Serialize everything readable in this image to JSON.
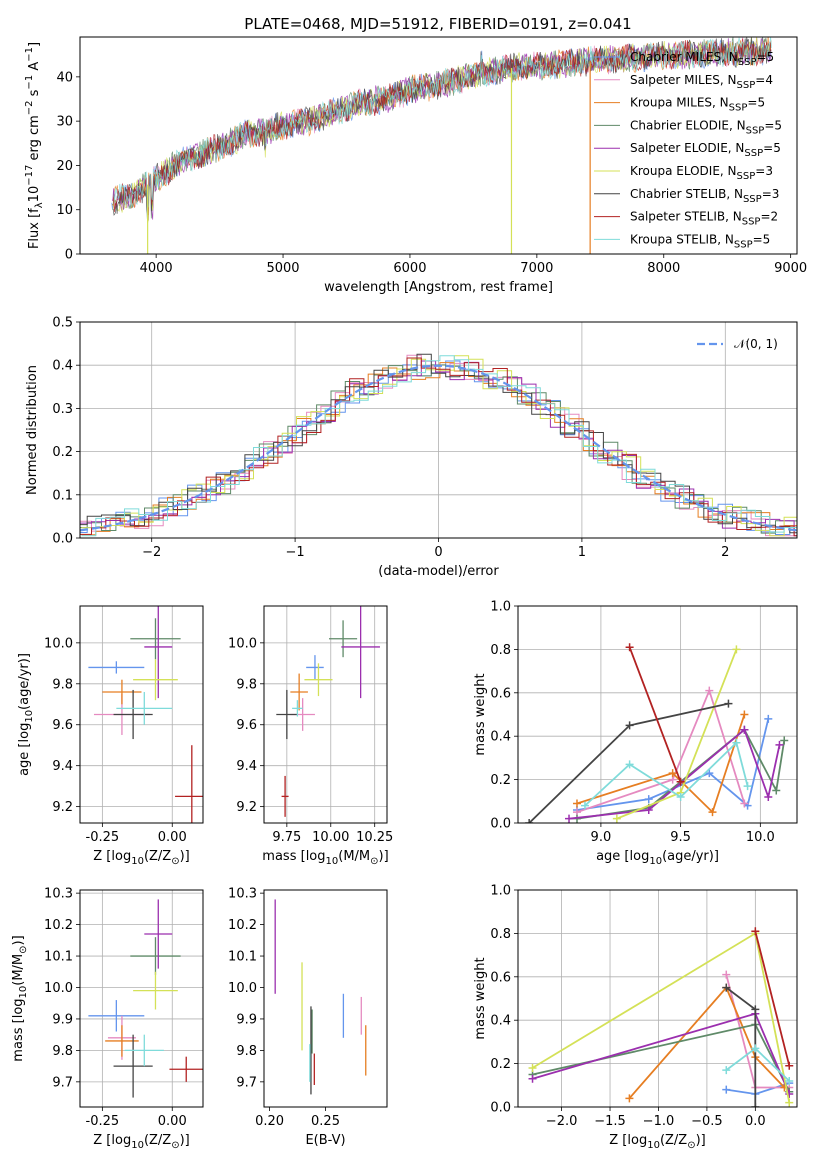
{
  "figure": {
    "title": "PLATE=0468, MJD=51912, FIBERID=0191, z=0.041"
  },
  "chart_data": [
    {
      "id": "spectrum",
      "type": "line",
      "xlabel": "wavelength [Angstrom, rest frame]",
      "ylabel": "Flux [f_λ10^-17 erg cm^-2 s^-1 A^-1]",
      "xlim": [
        3400,
        9050
      ],
      "ylim": [
        0,
        49
      ],
      "xticks": [
        4000,
        5000,
        6000,
        7000,
        8000,
        9000
      ],
      "yticks": [
        0,
        10,
        20,
        30,
        40
      ],
      "grid": false,
      "legend_position": "right",
      "continuum": {
        "x": [
          3650,
          3800,
          3900,
          4000,
          4100,
          4200,
          4300,
          4400,
          4500,
          4600,
          4700,
          4800,
          4900,
          5000,
          5200,
          5400,
          5600,
          5800,
          6000,
          6200,
          6400,
          6600,
          6800,
          7000,
          7200,
          7400,
          7600,
          7800,
          8000,
          8200,
          8400,
          8600,
          8800
        ],
        "y": [
          12,
          13,
          15,
          17,
          19,
          21,
          22,
          23,
          24,
          25.5,
          27,
          27.5,
          28,
          29,
          30,
          32,
          34,
          35,
          37,
          38,
          39.5,
          41,
          42,
          42.5,
          43,
          43.5,
          44,
          44.5,
          45,
          45,
          45.5,
          45.5,
          46
        ]
      },
      "dips": [
        {
          "x": 3933,
          "y": 0
        },
        {
          "x": 6800,
          "y": 0
        },
        {
          "x": 7420,
          "y": 0
        }
      ],
      "series": [
        {
          "name": "Chabrier MILES, N_SSP=5",
          "color": "#6495ed"
        },
        {
          "name": "Salpeter MILES, N_SSP=4",
          "color": "#e58ac0"
        },
        {
          "name": "Kroupa MILES, N_SSP=5",
          "color": "#e67e22"
        },
        {
          "name": "Chabrier ELODIE, N_SSP=5",
          "color": "#5f8a68"
        },
        {
          "name": "Salpeter ELODIE, N_SSP=5",
          "color": "#9b2fae"
        },
        {
          "name": "Kroupa ELODIE, N_SSP=3",
          "color": "#d4e157"
        },
        {
          "name": "Chabrier STELIB, N_SSP=3",
          "color": "#444444"
        },
        {
          "name": "Salpeter STELIB, N_SSP=2",
          "color": "#b22222"
        },
        {
          "name": "Kroupa STELIB, N_SSP=5",
          "color": "#7fdbda"
        }
      ]
    },
    {
      "id": "residuals",
      "type": "line",
      "xlabel": "(data-model)/error",
      "ylabel": "Normed distribution",
      "xlim": [
        -2.5,
        2.5
      ],
      "ylim": [
        0,
        0.5
      ],
      "xticks": [
        -2,
        -1,
        0,
        1,
        2
      ],
      "yticks": [
        0.0,
        0.1,
        0.2,
        0.3,
        0.4,
        0.5
      ],
      "grid": true,
      "legend_position": "top-right",
      "gaussian_label": "𝒩(0, 1)",
      "gaussian_color": "#6495ed",
      "bin_width": 0.1,
      "series_colors": [
        "#6495ed",
        "#e58ac0",
        "#e67e22",
        "#5f8a68",
        "#9b2fae",
        "#d4e157",
        "#444444",
        "#b22222",
        "#7fdbda"
      ]
    },
    {
      "id": "age-vs-Z",
      "type": "scatter",
      "xlabel": "Z [log10(Z/Z⊙)]",
      "ylabel": "age  [log10(age/yr)]",
      "xlim": [
        -0.33,
        0.11
      ],
      "ylim": [
        9.12,
        10.18
      ],
      "xticks": [
        -0.25,
        0.0
      ],
      "xticklabels": [
        "-0.25",
        "0.00"
      ],
      "yticks": [
        9.2,
        9.4,
        9.6,
        9.8,
        10.0
      ],
      "grid": true,
      "points": [
        {
          "x": -0.2,
          "y": 9.88,
          "xerr": 0.1,
          "yerr": 0.03,
          "color": "#6495ed"
        },
        {
          "x": -0.18,
          "y": 9.65,
          "xerr": 0.1,
          "yerr": 0.1,
          "color": "#e58ac0"
        },
        {
          "x": -0.18,
          "y": 9.76,
          "xerr": 0.07,
          "yerr": 0.06,
          "color": "#e67e22"
        },
        {
          "x": -0.06,
          "y": 10.02,
          "xerr": 0.09,
          "yerr": 0.1,
          "color": "#5f8a68"
        },
        {
          "x": -0.05,
          "y": 9.98,
          "xerr": 0.05,
          "yerr": 0.25,
          "color": "#9b2fae"
        },
        {
          "x": -0.06,
          "y": 9.82,
          "xerr": 0.08,
          "yerr": 0.1,
          "color": "#d4e157"
        },
        {
          "x": -0.14,
          "y": 9.65,
          "xerr": 0.07,
          "yerr": 0.12,
          "color": "#444444"
        },
        {
          "x": 0.07,
          "y": 9.25,
          "xerr": 0.06,
          "yerr": 0.25,
          "color": "#b22222"
        },
        {
          "x": -0.1,
          "y": 9.68,
          "xerr": 0.1,
          "yerr": 0.08,
          "color": "#7fdbda"
        }
      ]
    },
    {
      "id": "age-vs-mass",
      "type": "scatter",
      "xlabel": "mass [log10(M/M⊙)]",
      "ylabel": "",
      "xlim": [
        9.62,
        10.32
      ],
      "ylim": [
        9.12,
        10.18
      ],
      "xticks": [
        9.75,
        10.0,
        10.25
      ],
      "xticklabels": [
        "9.75",
        "10.00",
        "10.25"
      ],
      "yticks": [
        9.2,
        9.4,
        9.6,
        9.8,
        10.0
      ],
      "grid": true,
      "points": [
        {
          "x": 9.91,
          "y": 9.88,
          "xerr": 0.05,
          "yerr": 0.06,
          "color": "#6495ed"
        },
        {
          "x": 9.84,
          "y": 9.65,
          "xerr": 0.07,
          "yerr": 0.08,
          "color": "#e58ac0"
        },
        {
          "x": 9.82,
          "y": 9.76,
          "xerr": 0.05,
          "yerr": 0.09,
          "color": "#e67e22"
        },
        {
          "x": 10.07,
          "y": 10.02,
          "xerr": 0.08,
          "yerr": 0.09,
          "color": "#5f8a68"
        },
        {
          "x": 10.17,
          "y": 9.98,
          "xerr": 0.11,
          "yerr": 0.25,
          "color": "#9b2fae"
        },
        {
          "x": 9.93,
          "y": 9.82,
          "xerr": 0.08,
          "yerr": 0.08,
          "color": "#d4e157"
        },
        {
          "x": 9.75,
          "y": 9.65,
          "xerr": 0.06,
          "yerr": 0.12,
          "color": "#444444"
        },
        {
          "x": 9.74,
          "y": 9.25,
          "xerr": 0.02,
          "yerr": 0.1,
          "color": "#b22222"
        },
        {
          "x": 9.81,
          "y": 9.68,
          "xerr": 0.03,
          "yerr": 0.04,
          "color": "#7fdbda"
        }
      ]
    },
    {
      "id": "massweight-vs-age",
      "type": "line",
      "xlabel": "age  [log10(age/yr)]",
      "ylabel": "mass weight",
      "xlim": [
        8.48,
        10.23
      ],
      "ylim": [
        0,
        1.0
      ],
      "xticks": [
        9.0,
        9.5,
        10.0
      ],
      "xticklabels": [
        "9.0",
        "9.5",
        "10.0"
      ],
      "yticks": [
        0.0,
        0.2,
        0.4,
        0.6,
        0.8,
        1.0
      ],
      "grid": true,
      "series": [
        {
          "color": "#6495ed",
          "x": [
            8.85,
            9.3,
            9.68,
            9.92,
            10.05
          ],
          "y": [
            0.06,
            0.11,
            0.23,
            0.08,
            0.48
          ]
        },
        {
          "color": "#e58ac0",
          "x": [
            8.85,
            9.45,
            9.68,
            9.9
          ],
          "y": [
            0.05,
            0.2,
            0.61,
            0.09
          ]
        },
        {
          "color": "#e67e22",
          "x": [
            8.85,
            9.45,
            9.7,
            9.9
          ],
          "y": [
            0.09,
            0.23,
            0.05,
            0.5
          ]
        },
        {
          "color": "#5f8a68",
          "x": [
            8.85,
            9.3,
            9.9,
            10.1,
            10.15
          ],
          "y": [
            0.02,
            0.07,
            0.43,
            0.15,
            0.38
          ]
        },
        {
          "color": "#9b2fae",
          "x": [
            8.8,
            9.3,
            9.9,
            10.05,
            10.12
          ],
          "y": [
            0.02,
            0.06,
            0.43,
            0.12,
            0.36
          ]
        },
        {
          "color": "#d4e157",
          "x": [
            9.1,
            9.5,
            9.85
          ],
          "y": [
            0.02,
            0.14,
            0.8
          ]
        },
        {
          "color": "#444444",
          "x": [
            8.55,
            9.18,
            9.8
          ],
          "y": [
            0.0,
            0.45,
            0.55
          ]
        },
        {
          "color": "#b22222",
          "x": [
            9.18,
            9.5
          ],
          "y": [
            0.81,
            0.19
          ]
        },
        {
          "color": "#7fdbda",
          "x": [
            8.9,
            9.18,
            9.5,
            9.85,
            9.92
          ],
          "y": [
            0.08,
            0.27,
            0.12,
            0.37,
            0.17
          ]
        }
      ]
    },
    {
      "id": "mass-vs-Z",
      "type": "scatter",
      "xlabel": "Z [log10(Z/Z⊙)]",
      "ylabel": "mass [log10(M/M⊙)]",
      "xlim": [
        -0.33,
        0.11
      ],
      "ylim": [
        9.62,
        10.31
      ],
      "xticks": [
        -0.25,
        0.0
      ],
      "xticklabels": [
        "-0.25",
        "0.00"
      ],
      "yticks": [
        9.7,
        9.8,
        9.9,
        10.0,
        10.1,
        10.2,
        10.3
      ],
      "grid": true,
      "points": [
        {
          "x": -0.2,
          "y": 9.91,
          "xerr": 0.1,
          "yerr": 0.05,
          "color": "#6495ed"
        },
        {
          "x": -0.18,
          "y": 9.84,
          "xerr": 0.05,
          "yerr": 0.07,
          "color": "#e58ac0"
        },
        {
          "x": -0.18,
          "y": 9.83,
          "xerr": 0.06,
          "yerr": 0.05,
          "color": "#e67e22"
        },
        {
          "x": -0.06,
          "y": 10.1,
          "xerr": 0.09,
          "yerr": 0.06,
          "color": "#5f8a68"
        },
        {
          "x": -0.05,
          "y": 10.17,
          "xerr": 0.05,
          "yerr": 0.11,
          "color": "#9b2fae"
        },
        {
          "x": -0.06,
          "y": 9.99,
          "xerr": 0.08,
          "yerr": 0.06,
          "color": "#d4e157"
        },
        {
          "x": -0.14,
          "y": 9.75,
          "xerr": 0.07,
          "yerr": 0.1,
          "color": "#444444"
        },
        {
          "x": 0.05,
          "y": 9.74,
          "xerr": 0.06,
          "yerr": 0.04,
          "color": "#b22222"
        },
        {
          "x": -0.1,
          "y": 9.8,
          "xerr": 0.07,
          "yerr": 0.05,
          "color": "#7fdbda"
        }
      ]
    },
    {
      "id": "mass-vs-ebv",
      "type": "scatter",
      "xlabel": "E(B-V)",
      "ylabel": "",
      "xlim": [
        0.195,
        0.305
      ],
      "ylim": [
        9.62,
        10.31
      ],
      "xticks": [
        0.2,
        0.25
      ],
      "xticklabels": [
        "0.20",
        "0.25"
      ],
      "yticks": [
        9.7,
        9.8,
        9.9,
        10.0,
        10.1,
        10.2,
        10.3
      ],
      "grid": false,
      "points": [
        {
          "x": 0.266,
          "y": 9.91,
          "xerr": 0,
          "yerr": 0.07,
          "color": "#6495ed"
        },
        {
          "x": 0.282,
          "y": 9.91,
          "xerr": 0,
          "yerr": 0.06,
          "color": "#e58ac0"
        },
        {
          "x": 0.286,
          "y": 9.8,
          "xerr": 0,
          "yerr": 0.08,
          "color": "#e67e22"
        },
        {
          "x": 0.238,
          "y": 9.86,
          "xerr": 0,
          "yerr": 0.07,
          "color": "#5f8a68"
        },
        {
          "x": 0.205,
          "y": 10.13,
          "xerr": 0,
          "yerr": 0.15,
          "color": "#9b2fae"
        },
        {
          "x": 0.229,
          "y": 9.94,
          "xerr": 0,
          "yerr": 0.14,
          "color": "#d4e157"
        },
        {
          "x": 0.237,
          "y": 9.8,
          "xerr": 0,
          "yerr": 0.14,
          "color": "#444444"
        },
        {
          "x": 0.24,
          "y": 9.74,
          "xerr": 0,
          "yerr": 0.05,
          "color": "#b22222"
        },
        {
          "x": 0.236,
          "y": 9.76,
          "xerr": 0,
          "yerr": 0.06,
          "color": "#7fdbda"
        }
      ]
    },
    {
      "id": "massweight-vs-Z",
      "type": "line",
      "xlabel": "Z [log10(Z/Z⊙)]",
      "ylabel": "mass weight",
      "xlim": [
        -2.45,
        0.43
      ],
      "ylim": [
        0,
        1.0
      ],
      "xticks": [
        -2.0,
        -1.5,
        -1.0,
        -0.5,
        0.0
      ],
      "xticklabels": [
        "−2.0",
        "−1.5",
        "−1.0",
        "−0.5",
        "0.0"
      ],
      "yticks": [
        0.0,
        0.2,
        0.4,
        0.6,
        0.8,
        1.0
      ],
      "grid": true,
      "series": [
        {
          "color": "#6495ed",
          "x": [
            -0.3,
            0.0,
            0.35
          ],
          "y": [
            0.08,
            0.06,
            0.11
          ]
        },
        {
          "color": "#e58ac0",
          "x": [
            -0.3,
            0.0,
            0.35
          ],
          "y": [
            0.61,
            0.09,
            0.09
          ]
        },
        {
          "color": "#e67e22",
          "x": [
            -1.3,
            -0.3,
            0.0,
            0.3
          ],
          "y": [
            0.04,
            0.55,
            0.23,
            0.09
          ]
        },
        {
          "color": "#5f8a68",
          "x": [
            -2.3,
            0.0,
            0.35
          ],
          "y": [
            0.15,
            0.38,
            0.07
          ]
        },
        {
          "color": "#9b2fae",
          "x": [
            -2.3,
            0.0,
            0.35
          ],
          "y": [
            0.13,
            0.43,
            0.06
          ]
        },
        {
          "color": "#d4e157",
          "x": [
            -2.3,
            0.0,
            0.35
          ],
          "y": [
            0.18,
            0.8,
            0.02
          ]
        },
        {
          "color": "#444444",
          "x": [
            -0.3,
            0.0,
            0.0
          ],
          "y": [
            0.55,
            0.45,
            0.0
          ]
        },
        {
          "color": "#b22222",
          "x": [
            0.0,
            0.35
          ],
          "y": [
            0.81,
            0.19
          ]
        },
        {
          "color": "#7fdbda",
          "x": [
            -0.3,
            0.0,
            0.35
          ],
          "y": [
            0.17,
            0.27,
            0.12
          ]
        }
      ]
    }
  ]
}
